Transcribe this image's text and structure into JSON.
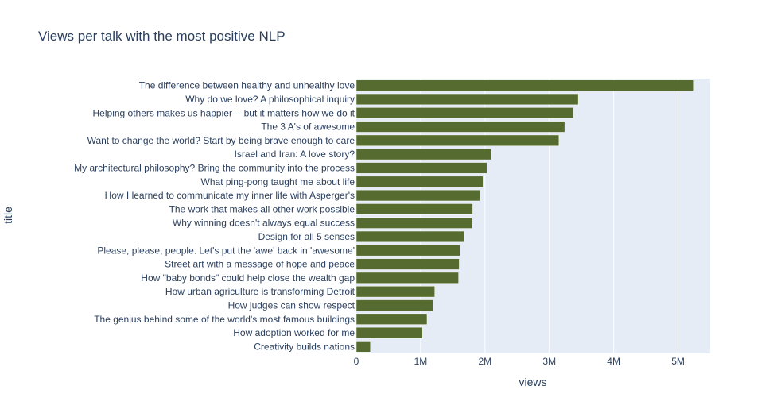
{
  "chart_data": {
    "type": "bar",
    "orientation": "horizontal",
    "title": "Views per talk with the most positive NLP",
    "xlabel": "views",
    "ylabel": "title",
    "xlim": [
      0,
      5500000
    ],
    "x_ticks": [
      0,
      1000000,
      2000000,
      3000000,
      4000000,
      5000000
    ],
    "x_tick_labels": [
      "0",
      "1M",
      "2M",
      "3M",
      "4M",
      "5M"
    ],
    "grid": true,
    "bar_color": "#556b2f",
    "plot_bg": "#e5ecf6",
    "categories": [
      "The difference between healthy and unhealthy love",
      "Why do we love? A philosophical inquiry",
      "Helping others makes us happier -- but it matters how we do it",
      "The 3 A's of awesome",
      "Want to change the world? Start by being brave enough to care",
      "Israel and Iran: A love story?",
      "My architectural philosophy? Bring the community into the process",
      "What ping-pong taught me about life",
      "How I learned to communicate my inner life with Asperger's",
      "The work that makes all other work possible",
      "Why winning doesn't always equal success",
      "Design for all 5 senses",
      "Please, please, people. Let's put the 'awe' back in 'awesome'",
      "Street art with a message of hope and peace",
      "How \"baby bonds\" could help close the wealth gap",
      "How urban agriculture is transforming Detroit",
      "How judges can show respect",
      "The genius behind some of the world's most famous buildings",
      "How adoption worked for me",
      "Creativity builds nations"
    ],
    "values": [
      5250000,
      3450000,
      3370000,
      3240000,
      3150000,
      2100000,
      2030000,
      1970000,
      1920000,
      1810000,
      1800000,
      1680000,
      1610000,
      1600000,
      1590000,
      1220000,
      1190000,
      1100000,
      1030000,
      220000
    ]
  }
}
